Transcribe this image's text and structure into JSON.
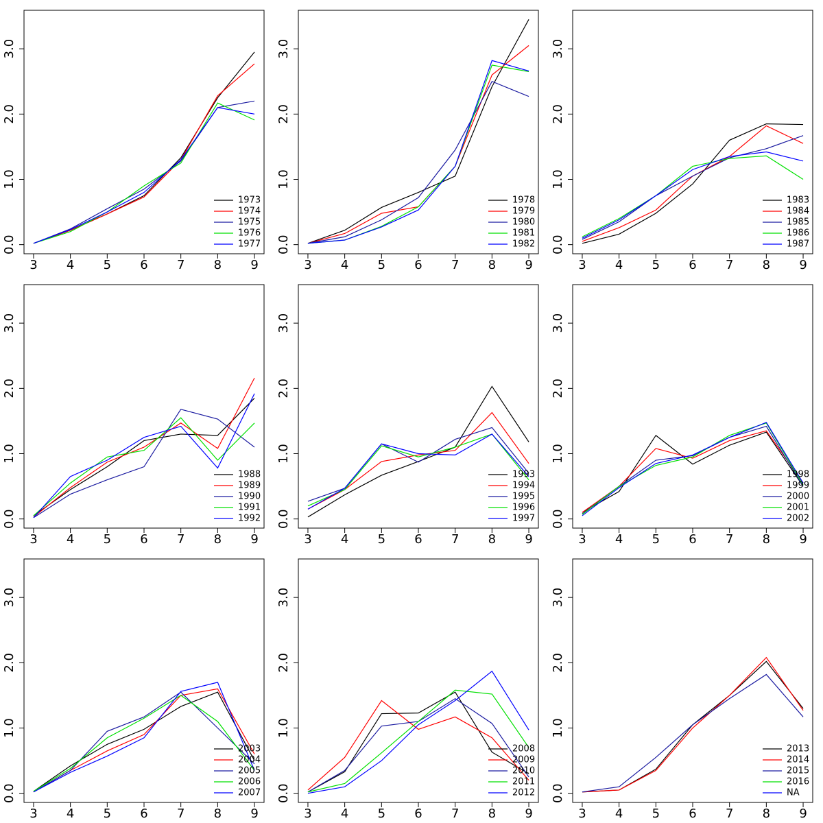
{
  "chart_data": [
    {
      "type": "line",
      "x": [
        3,
        4,
        5,
        6,
        7,
        8,
        9
      ],
      "xlim": [
        2.74,
        9.26
      ],
      "xticks": [
        3,
        4,
        5,
        6,
        7,
        8,
        9
      ],
      "ylim": [
        -0.14,
        3.59
      ],
      "yticks": [
        {
          "value": 0,
          "label": "0.0"
        },
        {
          "value": 1,
          "label": "1.0"
        },
        {
          "value": 2,
          "label": "2.0"
        },
        {
          "value": 3,
          "label": "3.0"
        }
      ],
      "legend": "bottomright",
      "series": [
        {
          "name": "1973",
          "color": "#000000",
          "values": [
            0.02,
            0.22,
            0.47,
            0.75,
            1.33,
            2.25,
            2.95
          ]
        },
        {
          "name": "1974",
          "color": "#ff0000",
          "values": [
            0.02,
            0.22,
            0.47,
            0.73,
            1.3,
            2.28,
            2.77
          ]
        },
        {
          "name": "1975",
          "color": "#1a1aa0",
          "values": [
            0.02,
            0.24,
            0.55,
            0.85,
            1.28,
            2.1,
            2.2
          ]
        },
        {
          "name": "1976",
          "color": "#00e000",
          "values": [
            0.02,
            0.2,
            0.5,
            0.9,
            1.25,
            2.17,
            1.91
          ]
        },
        {
          "name": "1977",
          "color": "#0000ff",
          "values": [
            0.02,
            0.23,
            0.5,
            0.8,
            1.3,
            2.1,
            2.0
          ]
        }
      ]
    },
    {
      "type": "line",
      "x": [
        3,
        4,
        5,
        6,
        7,
        8,
        9
      ],
      "xlim": [
        2.74,
        9.26
      ],
      "xticks": [
        3,
        4,
        5,
        6,
        7,
        8,
        9
      ],
      "ylim": [
        -0.14,
        3.59
      ],
      "yticks": [
        {
          "value": 0,
          "label": "0.0"
        },
        {
          "value": 1,
          "label": "1.0"
        },
        {
          "value": 2,
          "label": "2.0"
        },
        {
          "value": 3,
          "label": "3.0"
        }
      ],
      "legend": "bottomright",
      "series": [
        {
          "name": "1978",
          "color": "#000000",
          "values": [
            0.02,
            0.22,
            0.57,
            0.8,
            1.05,
            2.42,
            3.45
          ]
        },
        {
          "name": "1979",
          "color": "#ff0000",
          "values": [
            0.02,
            0.17,
            0.48,
            0.58,
            1.2,
            2.6,
            3.05
          ]
        },
        {
          "name": "1980",
          "color": "#1a1aa0",
          "values": [
            0.02,
            0.12,
            0.38,
            0.72,
            1.45,
            2.5,
            2.27
          ]
        },
        {
          "name": "1981",
          "color": "#00e000",
          "values": [
            0.02,
            0.07,
            0.28,
            0.58,
            1.2,
            2.75,
            2.65
          ]
        },
        {
          "name": "1982",
          "color": "#0000ff",
          "values": [
            0.02,
            0.07,
            0.27,
            0.53,
            1.2,
            2.82,
            2.66
          ]
        }
      ]
    },
    {
      "type": "line",
      "x": [
        3,
        4,
        5,
        6,
        7,
        8,
        9
      ],
      "xlim": [
        2.74,
        9.26
      ],
      "xticks": [
        3,
        4,
        5,
        6,
        7,
        8,
        9
      ],
      "ylim": [
        -0.14,
        3.59
      ],
      "yticks": [
        {
          "value": 0,
          "label": "0.0"
        },
        {
          "value": 1,
          "label": "1.0"
        },
        {
          "value": 2,
          "label": "2.0"
        },
        {
          "value": 3,
          "label": "3.0"
        }
      ],
      "legend": "bottomright",
      "series": [
        {
          "name": "1983",
          "color": "#000000",
          "values": [
            0.02,
            0.16,
            0.48,
            0.93,
            1.6,
            1.85,
            1.84
          ]
        },
        {
          "name": "1984",
          "color": "#ff0000",
          "values": [
            0.05,
            0.26,
            0.53,
            1.05,
            1.35,
            1.82,
            1.55
          ]
        },
        {
          "name": "1985",
          "color": "#1a1aa0",
          "values": [
            0.08,
            0.35,
            0.75,
            1.05,
            1.33,
            1.47,
            1.67
          ]
        },
        {
          "name": "1986",
          "color": "#00e000",
          "values": [
            0.12,
            0.4,
            0.75,
            1.2,
            1.32,
            1.36,
            1.0
          ]
        },
        {
          "name": "1987",
          "color": "#0000ff",
          "values": [
            0.1,
            0.38,
            0.75,
            1.15,
            1.35,
            1.42,
            1.28
          ]
        }
      ]
    },
    {
      "type": "line",
      "x": [
        3,
        4,
        5,
        6,
        7,
        8,
        9
      ],
      "xlim": [
        2.74,
        9.26
      ],
      "xticks": [
        3,
        4,
        5,
        6,
        7,
        8,
        9
      ],
      "ylim": [
        -0.14,
        3.59
      ],
      "yticks": [
        {
          "value": 0,
          "label": "0.0"
        },
        {
          "value": 1,
          "label": "1.0"
        },
        {
          "value": 2,
          "label": "2.0"
        },
        {
          "value": 3,
          "label": "3.0"
        }
      ],
      "legend": "bottomright",
      "series": [
        {
          "name": "1988",
          "color": "#000000",
          "values": [
            0.05,
            0.45,
            0.8,
            1.2,
            1.3,
            1.28,
            1.85
          ]
        },
        {
          "name": "1989",
          "color": "#ff0000",
          "values": [
            0.03,
            0.48,
            0.87,
            1.1,
            1.47,
            1.08,
            2.16
          ]
        },
        {
          "name": "1990",
          "color": "#1a1aa0",
          "values": [
            0.02,
            0.38,
            0.6,
            0.8,
            1.68,
            1.53,
            1.1
          ]
        },
        {
          "name": "1991",
          "color": "#00e000",
          "values": [
            0.05,
            0.55,
            0.95,
            1.05,
            1.55,
            0.9,
            1.47
          ]
        },
        {
          "name": "1992",
          "color": "#0000ff",
          "values": [
            0.02,
            0.65,
            0.9,
            1.25,
            1.42,
            0.78,
            1.92
          ]
        }
      ]
    },
    {
      "type": "line",
      "x": [
        3,
        4,
        5,
        6,
        7,
        8,
        9
      ],
      "xlim": [
        2.74,
        9.26
      ],
      "xticks": [
        3,
        4,
        5,
        6,
        7,
        8,
        9
      ],
      "ylim": [
        -0.14,
        3.59
      ],
      "yticks": [
        {
          "value": 0,
          "label": "0.0"
        },
        {
          "value": 1,
          "label": "1.0"
        },
        {
          "value": 2,
          "label": "2.0"
        },
        {
          "value": 3,
          "label": "3.0"
        }
      ],
      "legend": "bottomright",
      "series": [
        {
          "name": "1993",
          "color": "#000000",
          "values": [
            0.03,
            0.37,
            0.67,
            0.88,
            1.1,
            2.03,
            1.18
          ]
        },
        {
          "name": "1994",
          "color": "#ff0000",
          "values": [
            0.15,
            0.45,
            0.88,
            0.98,
            1.05,
            1.63,
            0.85
          ]
        },
        {
          "name": "1995",
          "color": "#1a1aa0",
          "values": [
            0.27,
            0.47,
            1.15,
            0.87,
            1.22,
            1.4,
            0.7
          ]
        },
        {
          "name": "1996",
          "color": "#00e000",
          "values": [
            0.2,
            0.45,
            1.12,
            0.95,
            1.1,
            1.3,
            0.6
          ]
        },
        {
          "name": "1997",
          "color": "#0000ff",
          "values": [
            0.15,
            0.47,
            1.15,
            1.0,
            0.98,
            1.3,
            0.65
          ]
        }
      ]
    },
    {
      "type": "line",
      "x": [
        3,
        4,
        5,
        6,
        7,
        8,
        9
      ],
      "xlim": [
        2.74,
        9.26
      ],
      "xticks": [
        3,
        4,
        5,
        6,
        7,
        8,
        9
      ],
      "ylim": [
        -0.14,
        3.59
      ],
      "yticks": [
        {
          "value": 0,
          "label": "0.0"
        },
        {
          "value": 1,
          "label": "1.0"
        },
        {
          "value": 2,
          "label": "2.0"
        },
        {
          "value": 3,
          "label": "3.0"
        }
      ],
      "legend": "bottomright",
      "series": [
        {
          "name": "1998",
          "color": "#000000",
          "values": [
            0.1,
            0.42,
            1.28,
            0.84,
            1.13,
            1.33,
            0.5
          ]
        },
        {
          "name": "1999",
          "color": "#ff0000",
          "values": [
            0.1,
            0.5,
            1.08,
            0.93,
            1.2,
            1.35,
            0.55
          ]
        },
        {
          "name": "2000",
          "color": "#1a1aa0",
          "values": [
            0.08,
            0.5,
            0.9,
            0.97,
            1.25,
            1.42,
            0.5
          ]
        },
        {
          "name": "2001",
          "color": "#00e000",
          "values": [
            0.07,
            0.5,
            0.82,
            0.95,
            1.28,
            1.47,
            0.52
          ]
        },
        {
          "name": "2002",
          "color": "#0000ff",
          "values": [
            0.05,
            0.48,
            0.85,
            0.98,
            1.25,
            1.48,
            0.55
          ]
        }
      ]
    },
    {
      "type": "line",
      "x": [
        3,
        4,
        5,
        6,
        7,
        8,
        9
      ],
      "xlim": [
        2.74,
        9.26
      ],
      "xticks": [
        3,
        4,
        5,
        6,
        7,
        8,
        9
      ],
      "ylim": [
        -0.14,
        3.59
      ],
      "yticks": [
        {
          "value": 0,
          "label": "0.0"
        },
        {
          "value": 1,
          "label": "1.0"
        },
        {
          "value": 2,
          "label": "2.0"
        },
        {
          "value": 3,
          "label": "3.0"
        }
      ],
      "legend": "bottomright",
      "series": [
        {
          "name": "2003",
          "color": "#000000",
          "values": [
            0.03,
            0.42,
            0.75,
            0.98,
            1.33,
            1.55,
            0.5
          ]
        },
        {
          "name": "2004",
          "color": "#ff0000",
          "values": [
            0.02,
            0.35,
            0.65,
            0.9,
            1.5,
            1.6,
            0.6
          ]
        },
        {
          "name": "2005",
          "color": "#1a1aa0",
          "values": [
            0.02,
            0.35,
            0.95,
            1.17,
            1.55,
            1.0,
            0.45
          ]
        },
        {
          "name": "2006",
          "color": "#00e000",
          "values": [
            0.03,
            0.38,
            0.85,
            1.15,
            1.5,
            1.1,
            0.35
          ]
        },
        {
          "name": "2007",
          "color": "#0000ff",
          "values": [
            0.02,
            0.32,
            0.57,
            0.85,
            1.56,
            1.7,
            0.35
          ]
        }
      ]
    },
    {
      "type": "line",
      "x": [
        3,
        4,
        5,
        6,
        7,
        8,
        9
      ],
      "xlim": [
        2.74,
        9.26
      ],
      "xticks": [
        3,
        4,
        5,
        6,
        7,
        8,
        9
      ],
      "ylim": [
        -0.14,
        3.59
      ],
      "yticks": [
        {
          "value": 0,
          "label": "0.0"
        },
        {
          "value": 1,
          "label": "1.0"
        },
        {
          "value": 2,
          "label": "2.0"
        },
        {
          "value": 3,
          "label": "3.0"
        }
      ],
      "legend": "bottomright",
      "series": [
        {
          "name": "2008",
          "color": "#000000",
          "values": [
            0.02,
            0.33,
            1.22,
            1.23,
            1.55,
            0.63,
            0.3
          ]
        },
        {
          "name": "2009",
          "color": "#ff0000",
          "values": [
            0.05,
            0.55,
            1.42,
            0.98,
            1.17,
            0.85,
            0.2
          ]
        },
        {
          "name": "2010",
          "color": "#1a1aa0",
          "values": [
            0.02,
            0.35,
            1.03,
            1.1,
            1.45,
            1.07,
            0.25
          ]
        },
        {
          "name": "2011",
          "color": "#00e000",
          "values": [
            0.02,
            0.15,
            0.62,
            1.1,
            1.58,
            1.52,
            0.7
          ]
        },
        {
          "name": "2012",
          "color": "#0000ff",
          "values": [
            0.0,
            0.1,
            0.5,
            1.05,
            1.42,
            1.87,
            0.97
          ]
        }
      ]
    },
    {
      "type": "line",
      "x": [
        3,
        4,
        5,
        6,
        7,
        8,
        9
      ],
      "xlim": [
        2.74,
        9.26
      ],
      "xticks": [
        3,
        4,
        5,
        6,
        7,
        8,
        9
      ],
      "ylim": [
        -0.14,
        3.59
      ],
      "yticks": [
        {
          "value": 0,
          "label": "0.0"
        },
        {
          "value": 1,
          "label": "1.0"
        },
        {
          "value": 2,
          "label": "2.0"
        },
        {
          "value": 3,
          "label": "3.0"
        }
      ],
      "legend": "bottomright",
      "series": [
        {
          "name": "2013",
          "color": "#000000",
          "values": [
            0.02,
            0.05,
            0.37,
            1.05,
            1.5,
            2.02,
            1.3
          ]
        },
        {
          "name": "2014",
          "color": "#ff0000",
          "values": [
            0.02,
            0.05,
            0.35,
            1.0,
            1.5,
            2.08,
            1.27
          ]
        },
        {
          "name": "2015",
          "color": "#1a1aa0",
          "values": [
            0.02,
            0.1,
            0.55,
            1.05,
            1.45,
            1.82,
            1.17
          ]
        },
        {
          "name": "2016",
          "color": "#00e000",
          "values": [
            null,
            null,
            null,
            null,
            null,
            null,
            null
          ]
        },
        {
          "name": "NA",
          "color": "#0000ff",
          "values": [
            null,
            null,
            null,
            null,
            null,
            null,
            null
          ]
        }
      ]
    }
  ]
}
